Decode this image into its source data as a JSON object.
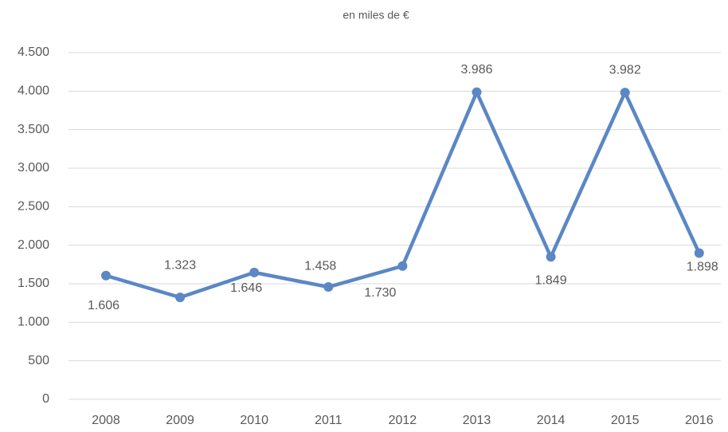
{
  "chart_data": {
    "type": "line",
    "title": "en miles de €",
    "categories": [
      "2008",
      "2009",
      "2010",
      "2011",
      "2012",
      "2013",
      "2014",
      "2015",
      "2016"
    ],
    "series": [
      {
        "name": "en miles de €",
        "color": "#5b87c5",
        "values": [
          1606,
          1323,
          1646,
          1458,
          1730,
          3986,
          1849,
          3982,
          1898
        ],
        "value_labels": [
          "1.606",
          "1.323",
          "1.646",
          "1.458",
          "1.730",
          "3.986",
          "1.849",
          "3.982",
          "1.898"
        ]
      }
    ],
    "ylim": [
      0,
      4500
    ],
    "yticks": [
      0,
      500,
      {
        "value": 1000,
        "label": "1.000"
      },
      {
        "value": 1500,
        "label": "1.500"
      },
      {
        "value": 2000,
        "label": "2.000"
      },
      {
        "value": 2500,
        "label": "2.500"
      },
      {
        "value": 3000,
        "label": "3.000"
      },
      {
        "value": 3500,
        "label": "3.500"
      },
      {
        "value": 4000,
        "label": "4.000"
      },
      {
        "value": 4500,
        "label": "4.500"
      }
    ],
    "grid": true
  }
}
